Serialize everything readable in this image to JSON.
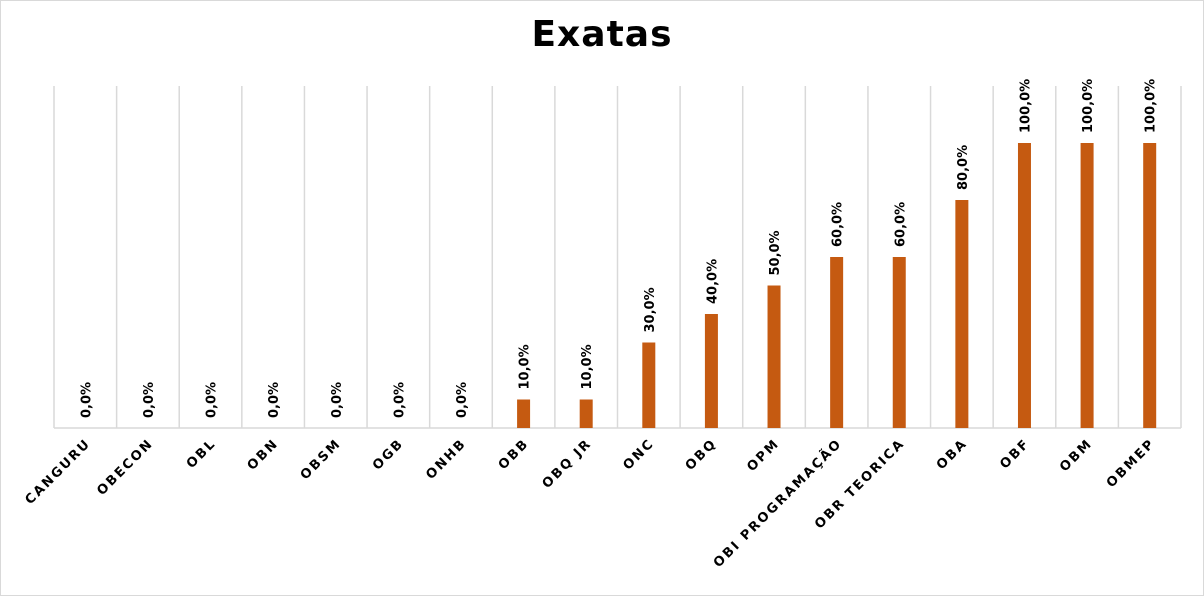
{
  "chart_data": {
    "type": "bar",
    "title": "Exatas",
    "categories": [
      "CANGURU",
      "OBECON",
      "OBL",
      "OBN",
      "OBSM",
      "OGB",
      "ONHB",
      "OBB",
      "OBQ JR",
      "ONC",
      "OBQ",
      "OPM",
      "OBI PROGRAMAÇÃO",
      "OBR TEORICA",
      "OBA",
      "OBF",
      "OBM",
      "OBMEP"
    ],
    "values": [
      0,
      0,
      0,
      0,
      0,
      0,
      0,
      10,
      10,
      30,
      40,
      50,
      60,
      60,
      80,
      100,
      100,
      100
    ],
    "value_labels": [
      "0,0%",
      "0,0%",
      "0,0%",
      "0,0%",
      "0,0%",
      "0,0%",
      "0,0%",
      "10,0%",
      "10,0%",
      "30,0%",
      "40,0%",
      "50,0%",
      "60,0%",
      "60,0%",
      "80,0%",
      "100,0%",
      "100,0%",
      "100,0%"
    ],
    "ylim": [
      0,
      100
    ],
    "bar_color": "#c55a11",
    "gridlines": "vertical",
    "legend": "none"
  }
}
